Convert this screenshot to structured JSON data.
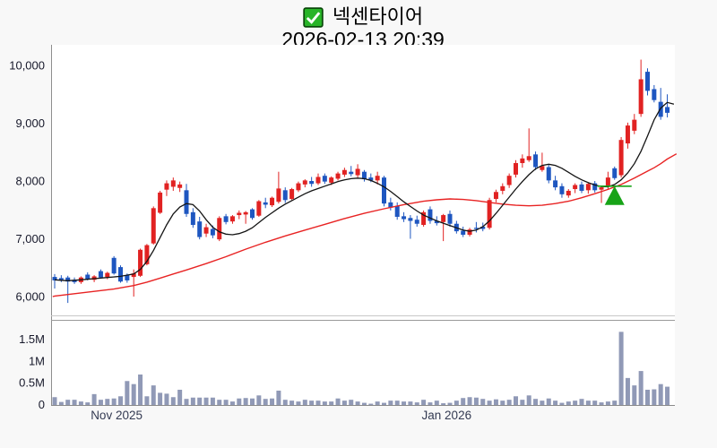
{
  "header": {
    "title": "넥센타이어",
    "datetime": "2026-02-13 20:39",
    "checkbox_checked": true
  },
  "colors": {
    "up_candle_red": "#e12222",
    "down_candle_blue": "#1e56c0",
    "ma_short_black": "#141414",
    "ma_long_red": "#e82323",
    "volume_bar": "#9099b6",
    "signal_green": "#17a317",
    "checkbox_green": "#28b428",
    "checkbox_border": "#0a4a0a",
    "axis_text": "#16182a",
    "month_text": "#333a52",
    "plot_bg": "#ffffff",
    "page_bg": "#f8f8f8"
  },
  "chart_data": {
    "type": "candlestick_with_volume",
    "title": "넥센타이어",
    "datetime": "2026-02-13 20:39",
    "grid": false,
    "legend": false,
    "price_ylim": [
      5700,
      10350
    ],
    "volume_ylim": [
      0,
      1.95
    ],
    "volume_unit": "M",
    "price_axis": {
      "ticks": [
        {
          "label": "10,000",
          "value": 10000
        },
        {
          "label": "9,000",
          "value": 9000
        },
        {
          "label": "8,000",
          "value": 8000
        },
        {
          "label": "7,000",
          "value": 7000
        },
        {
          "label": "6,000",
          "value": 6000
        }
      ]
    },
    "volume_axis": {
      "ticks": [
        {
          "label": "1.5M",
          "value": 1.5
        },
        {
          "label": "1M",
          "value": 1.0
        },
        {
          "label": "0.5M",
          "value": 0.5
        },
        {
          "label": "0",
          "value": 0
        }
      ]
    },
    "x_axis": {
      "labels": [
        {
          "label": "Nov 2025",
          "index": 9.4
        },
        {
          "label": "Jan 2026",
          "index": 59.5
        }
      ]
    },
    "candles_format": [
      "open",
      "high",
      "low",
      "close",
      "volume_millions"
    ],
    "candles": [
      [
        6340,
        6390,
        6140,
        6280,
        0.18
      ],
      [
        6320,
        6370,
        6250,
        6290,
        0.07
      ],
      [
        6330,
        6360,
        5890,
        6260,
        0.12
      ],
      [
        6290,
        6330,
        6220,
        6250,
        0.12
      ],
      [
        6250,
        6350,
        6220,
        6330,
        0.08
      ],
      [
        6380,
        6420,
        6280,
        6300,
        0.06
      ],
      [
        6290,
        6370,
        6250,
        6350,
        0.25
      ],
      [
        6440,
        6470,
        6310,
        6330,
        0.12
      ],
      [
        6340,
        6430,
        6300,
        6410,
        0.14
      ],
      [
        6670,
        6700,
        6380,
        6400,
        0.15
      ],
      [
        6510,
        6540,
        6240,
        6260,
        0.2
      ],
      [
        6370,
        6400,
        6240,
        6280,
        0.55
      ],
      [
        6340,
        6470,
        6000,
        6400,
        0.48
      ],
      [
        6360,
        6830,
        6340,
        6810,
        0.7
      ],
      [
        6560,
        6910,
        6540,
        6890,
        0.2
      ],
      [
        6920,
        7560,
        6900,
        7530,
        0.45
      ],
      [
        7450,
        7830,
        7430,
        7800,
        0.28
      ],
      [
        7850,
        8010,
        7740,
        7960,
        0.26
      ],
      [
        7900,
        8060,
        7830,
        8010,
        0.18
      ],
      [
        7880,
        7990,
        7810,
        7940,
        0.35
      ],
      [
        7840,
        7950,
        7380,
        7430,
        0.14
      ],
      [
        7460,
        7530,
        7190,
        7240,
        0.17
      ],
      [
        7300,
        7380,
        6990,
        7030,
        0.17
      ],
      [
        7090,
        7260,
        7030,
        7200,
        0.17
      ],
      [
        7170,
        7230,
        7010,
        7060,
        0.17
      ],
      [
        6990,
        7390,
        6960,
        7360,
        0.12
      ],
      [
        7390,
        7430,
        7250,
        7290,
        0.12
      ],
      [
        7300,
        7410,
        7260,
        7390,
        0.08
      ],
      [
        7410,
        7490,
        7340,
        7450,
        0.15
      ],
      [
        7420,
        7480,
        7260,
        7460,
        0.16
      ],
      [
        7510,
        7530,
        7330,
        7360,
        0.15
      ],
      [
        7400,
        7670,
        7380,
        7650,
        0.22
      ],
      [
        7630,
        7710,
        7530,
        7590,
        0.14
      ],
      [
        7580,
        7730,
        7550,
        7710,
        0.15
      ],
      [
        7640,
        8160,
        7610,
        7870,
        0.33
      ],
      [
        7840,
        7890,
        7620,
        7670,
        0.12
      ],
      [
        7690,
        7880,
        7670,
        7860,
        0.1
      ],
      [
        7840,
        7990,
        7810,
        7960,
        0.08
      ],
      [
        7940,
        8030,
        7890,
        8010,
        0.12
      ],
      [
        8000,
        8070,
        7900,
        7950,
        0.1
      ],
      [
        7960,
        8130,
        7930,
        8070,
        0.1
      ],
      [
        8090,
        8130,
        7950,
        7990,
        0.08
      ],
      [
        7970,
        8080,
        7930,
        8060,
        0.08
      ],
      [
        8040,
        8160,
        8010,
        8130,
        0.15
      ],
      [
        8110,
        8230,
        8070,
        8190,
        0.1
      ],
      [
        8160,
        8260,
        8080,
        8120,
        0.12
      ],
      [
        8100,
        8290,
        8060,
        8210,
        0.08
      ],
      [
        8160,
        8190,
        7990,
        8030,
        0.05
      ],
      [
        8060,
        8130,
        7980,
        8010,
        0.03
      ],
      [
        8010,
        8160,
        7940,
        8090,
        0.08
      ],
      [
        8060,
        8090,
        7560,
        7610,
        0.05
      ],
      [
        7630,
        7710,
        7490,
        7540,
        0.1
      ],
      [
        7570,
        7630,
        7330,
        7380,
        0.1
      ],
      [
        7390,
        7460,
        7290,
        7340,
        0.08
      ],
      [
        7360,
        7410,
        7000,
        7310,
        0.08
      ],
      [
        7330,
        7400,
        7210,
        7260,
        0.06
      ],
      [
        7240,
        7490,
        7210,
        7460,
        0.12
      ],
      [
        7510,
        7560,
        7260,
        7310,
        0.06
      ],
      [
        7310,
        7390,
        7230,
        7270,
        0.1
      ],
      [
        7290,
        7430,
        6960,
        7410,
        0.04
      ],
      [
        7430,
        7490,
        7210,
        7260,
        0.05
      ],
      [
        7260,
        7310,
        7090,
        7130,
        0.1
      ],
      [
        7140,
        7210,
        7030,
        7070,
        0.16
      ],
      [
        7070,
        7190,
        7040,
        7160,
        0.18
      ],
      [
        7190,
        7290,
        7110,
        7170,
        0.17
      ],
      [
        7210,
        7280,
        7130,
        7170,
        0.14
      ],
      [
        7190,
        7710,
        7160,
        7670,
        0.1
      ],
      [
        7690,
        7850,
        7630,
        7810,
        0.13
      ],
      [
        7830,
        7960,
        7770,
        7910,
        0.1
      ],
      [
        7930,
        8130,
        7880,
        8090,
        0.12
      ],
      [
        8110,
        8360,
        8060,
        8310,
        0.2
      ],
      [
        8310,
        8460,
        8230,
        8390,
        0.12
      ],
      [
        8360,
        8910,
        8330,
        8430,
        0.22
      ],
      [
        8460,
        8510,
        8190,
        8240,
        0.14
      ],
      [
        8190,
        8490,
        8160,
        8260,
        0.1
      ],
      [
        8240,
        8290,
        7960,
        8010,
        0.15
      ],
      [
        8010,
        8090,
        7840,
        7890,
        0.1
      ],
      [
        7910,
        7960,
        7710,
        7770,
        0.05
      ],
      [
        7750,
        7860,
        7710,
        7830,
        0.08
      ],
      [
        7860,
        7960,
        7790,
        7930,
        0.1
      ],
      [
        7940,
        7990,
        7790,
        7830,
        0.14
      ],
      [
        7840,
        7980,
        7780,
        7950,
        0.1
      ],
      [
        7960,
        8000,
        7800,
        7840,
        0.1
      ],
      [
        7850,
        7920,
        7620,
        7890,
        0.06
      ],
      [
        7900,
        8160,
        7850,
        8060,
        0.08
      ],
      [
        8220,
        8250,
        8020,
        8050,
        0.1
      ],
      [
        8100,
        8760,
        8060,
        8710,
        1.68
      ],
      [
        8650,
        9010,
        8560,
        8960,
        0.62
      ],
      [
        8870,
        9160,
        8810,
        9060,
        0.45
      ],
      [
        9160,
        10100,
        9110,
        9760,
        0.78
      ],
      [
        9890,
        9950,
        9480,
        9560,
        0.35
      ],
      [
        9590,
        9660,
        9360,
        9400,
        0.36
      ],
      [
        9370,
        9610,
        9060,
        9110,
        0.48
      ],
      [
        9280,
        9500,
        9100,
        9180,
        0.42
      ]
    ],
    "ma_short_format": [
      "candle_index",
      "price"
    ],
    "ma_short": [
      [
        0,
        6290
      ],
      [
        2,
        6275
      ],
      [
        4,
        6290
      ],
      [
        6,
        6310
      ],
      [
        8,
        6330
      ],
      [
        10,
        6350
      ],
      [
        12,
        6390
      ],
      [
        13,
        6470
      ],
      [
        14,
        6610
      ],
      [
        15,
        6800
      ],
      [
        16,
        7020
      ],
      [
        17,
        7240
      ],
      [
        18,
        7430
      ],
      [
        19,
        7550
      ],
      [
        20,
        7610
      ],
      [
        21,
        7590
      ],
      [
        22,
        7480
      ],
      [
        23,
        7330
      ],
      [
        24,
        7200
      ],
      [
        25,
        7120
      ],
      [
        26,
        7080
      ],
      [
        27,
        7070
      ],
      [
        28,
        7090
      ],
      [
        29,
        7130
      ],
      [
        30,
        7190
      ],
      [
        31,
        7280
      ],
      [
        32,
        7370
      ],
      [
        33,
        7450
      ],
      [
        34,
        7530
      ],
      [
        35,
        7600
      ],
      [
        36,
        7660
      ],
      [
        37,
        7720
      ],
      [
        38,
        7780
      ],
      [
        39,
        7830
      ],
      [
        40,
        7870
      ],
      [
        41,
        7910
      ],
      [
        42,
        7950
      ],
      [
        43,
        7990
      ],
      [
        44,
        8020
      ],
      [
        45,
        8040
      ],
      [
        46,
        8050
      ],
      [
        47,
        8040
      ],
      [
        48,
        8010
      ],
      [
        49,
        7960
      ],
      [
        50,
        7900
      ],
      [
        51,
        7820
      ],
      [
        52,
        7730
      ],
      [
        53,
        7640
      ],
      [
        54,
        7560
      ],
      [
        55,
        7480
      ],
      [
        56,
        7410
      ],
      [
        57,
        7360
      ],
      [
        58,
        7310
      ],
      [
        59,
        7270
      ],
      [
        60,
        7230
      ],
      [
        61,
        7190
      ],
      [
        62,
        7150
      ],
      [
        63,
        7130
      ],
      [
        64,
        7150
      ],
      [
        65,
        7210
      ],
      [
        66,
        7310
      ],
      [
        67,
        7440
      ],
      [
        68,
        7580
      ],
      [
        69,
        7720
      ],
      [
        70,
        7860
      ],
      [
        71,
        7990
      ],
      [
        72,
        8110
      ],
      [
        73,
        8210
      ],
      [
        74,
        8270
      ],
      [
        75,
        8290
      ],
      [
        76,
        8270
      ],
      [
        77,
        8220
      ],
      [
        78,
        8150
      ],
      [
        79,
        8080
      ],
      [
        80,
        8020
      ],
      [
        81,
        7970
      ],
      [
        82,
        7930
      ],
      [
        83,
        7905
      ],
      [
        84,
        7900
      ],
      [
        85,
        7940
      ],
      [
        86,
        8020
      ],
      [
        87,
        8140
      ],
      [
        88,
        8300
      ],
      [
        89,
        8510
      ],
      [
        90,
        8780
      ],
      [
        91,
        9060
      ],
      [
        92,
        9260
      ],
      [
        93,
        9360
      ],
      [
        94,
        9330
      ]
    ],
    "ma_long": [
      [
        -0.3,
        6000
      ],
      [
        0,
        6010
      ],
      [
        3,
        6050
      ],
      [
        6,
        6090
      ],
      [
        9,
        6130
      ],
      [
        12,
        6190
      ],
      [
        14,
        6250
      ],
      [
        16,
        6320
      ],
      [
        18,
        6390
      ],
      [
        20,
        6460
      ],
      [
        23,
        6570
      ],
      [
        26,
        6690
      ],
      [
        29,
        6820
      ],
      [
        32,
        6940
      ],
      [
        35,
        7050
      ],
      [
        38,
        7150
      ],
      [
        41,
        7250
      ],
      [
        44,
        7350
      ],
      [
        47,
        7440
      ],
      [
        50,
        7520
      ],
      [
        53,
        7590
      ],
      [
        56,
        7650
      ],
      [
        58,
        7675
      ],
      [
        60,
        7690
      ],
      [
        62,
        7680
      ],
      [
        64,
        7660
      ],
      [
        66,
        7630
      ],
      [
        68,
        7600
      ],
      [
        70,
        7580
      ],
      [
        72,
        7570
      ],
      [
        74,
        7580
      ],
      [
        76,
        7610
      ],
      [
        78,
        7650
      ],
      [
        80,
        7710
      ],
      [
        82,
        7780
      ],
      [
        84,
        7855
      ],
      [
        86,
        7940
      ],
      [
        88,
        8050
      ],
      [
        90,
        8170
      ],
      [
        91,
        8230
      ],
      [
        92,
        8300
      ],
      [
        93,
        8380
      ],
      [
        94.4,
        8470
      ]
    ],
    "buy_signal_marker": {
      "shape": "triangle-up",
      "index": 85,
      "apex_price": 7910,
      "base_price": 7585,
      "half_width": 11,
      "line_price": 7910,
      "line_half_width": 19
    }
  }
}
